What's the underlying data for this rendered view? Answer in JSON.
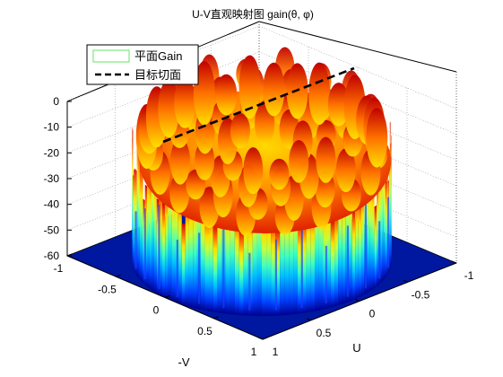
{
  "chart_data": {
    "type": "surface3d",
    "title": "U-V直观映射图 gain(θ, φ)",
    "xlabel": "U",
    "ylabel": "-V",
    "zlabel": "",
    "u_ticks": [
      "-1",
      "-0.5",
      "0",
      "0.5",
      "1"
    ],
    "v_ticks": [
      "-1",
      "-0.5",
      "0",
      "0.5",
      "1"
    ],
    "z_ticks": [
      "0",
      "-10",
      "-20",
      "-30",
      "-40",
      "-50",
      "-60"
    ],
    "ulim": [
      -1,
      1
    ],
    "vlim": [
      -1,
      1
    ],
    "zlim": [
      -60,
      0
    ],
    "colormap": "jet",
    "grid": true,
    "legend": {
      "placement": "top-left",
      "entries": [
        {
          "label": "平面Gain",
          "style": "surface",
          "color": "#b6f5b6"
        },
        {
          "label": "目标切面",
          "style": "dashed-line",
          "color": "#000000"
        }
      ]
    },
    "series": [
      {
        "name": "平面Gain",
        "kind": "surface",
        "description_values": {
          "rim_peak_max": 0,
          "floor": -60
        }
      },
      {
        "name": "目标切面",
        "kind": "line",
        "z_start": -10,
        "z_end": 0
      }
    ]
  }
}
